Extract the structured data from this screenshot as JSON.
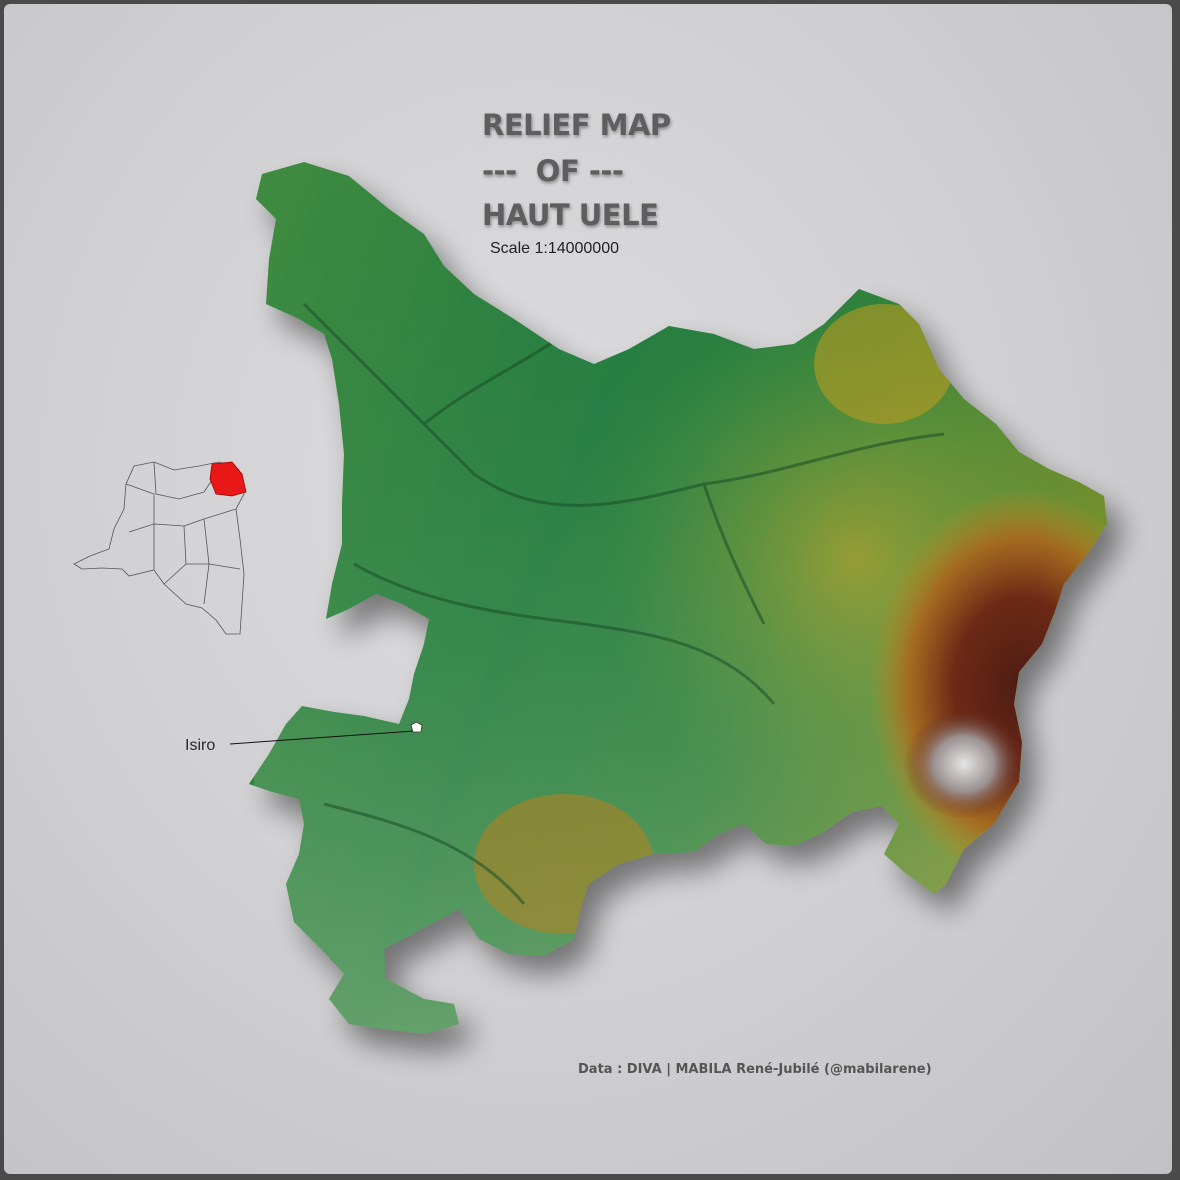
{
  "map": {
    "title_lines": [
      "RELIEF MAP",
      "---  OF ---",
      "HAUT UELE"
    ],
    "scale": "Scale  1:14000000",
    "credit": "Data : DIVA  |  MABILA René-Jubilé (@mabilarene)",
    "cities": [
      {
        "name": "Isiro"
      }
    ],
    "colors": {
      "background": "#d4d4d6",
      "lowland": "#1f7a3c",
      "midland": "#5f9a3a",
      "upland": "#c08a1c",
      "highland": "#5e1f12",
      "peak": "#d8d8d8",
      "inset_highlight": "#e81818"
    }
  }
}
